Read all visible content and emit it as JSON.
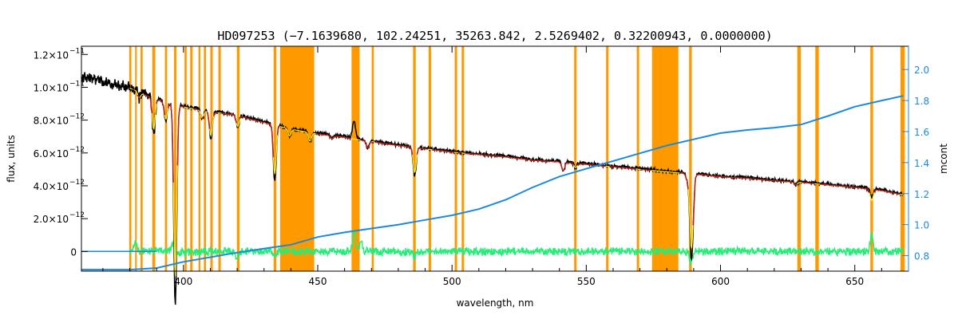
{
  "chart_data": {
    "type": "line",
    "title": "HD097253   (−7.1639680, 102.24251, 35263.842, 2.5269402, 0.32200943, 0.0000000)",
    "xlabel": "wavelength, nm",
    "ylabel": "flux, units",
    "y2label": "mcont",
    "xlim": [
      362,
      670
    ],
    "ylim": [
      -1.2e-12,
      1.25e-11
    ],
    "y2lim": [
      0.7,
      2.15
    ],
    "grid": false,
    "x_ticks": [
      {
        "value": 400,
        "label": "400"
      },
      {
        "value": 450,
        "label": "450"
      },
      {
        "value": 500,
        "label": "500"
      },
      {
        "value": 550,
        "label": "550"
      },
      {
        "value": 600,
        "label": "600"
      },
      {
        "value": 650,
        "label": "650"
      }
    ],
    "y_ticks": [
      {
        "value": 0,
        "mant": "0",
        "exp": ""
      },
      {
        "value": 2e-12,
        "mant": "2.0×10",
        "exp": "−12"
      },
      {
        "value": 4e-12,
        "mant": "4.0×10",
        "exp": "−12"
      },
      {
        "value": 6e-12,
        "mant": "6.0×10",
        "exp": "−12"
      },
      {
        "value": 8e-12,
        "mant": "8.0×10",
        "exp": "−12"
      },
      {
        "value": 1e-11,
        "mant": "1.0×10",
        "exp": "−11"
      },
      {
        "value": 1.2e-11,
        "mant": "1.2×10",
        "exp": "−11"
      }
    ],
    "y2_ticks": [
      {
        "value": 0.8,
        "label": "0.8"
      },
      {
        "value": 1.0,
        "label": "1.0"
      },
      {
        "value": 1.2,
        "label": "1.2"
      },
      {
        "value": 1.4,
        "label": "1.4"
      },
      {
        "value": 1.6,
        "label": "1.6"
      },
      {
        "value": 1.8,
        "label": "1.8"
      },
      {
        "value": 2.0,
        "label": "2.0"
      }
    ],
    "masked_regions": [
      [
        379.8,
        380.6
      ],
      [
        382.0,
        382.6
      ],
      [
        384.0,
        384.8
      ],
      [
        388.4,
        389.5
      ],
      [
        393.1,
        393.9
      ],
      [
        396.5,
        397.4
      ],
      [
        400.4,
        401.2
      ],
      [
        402.5,
        403.4
      ],
      [
        405.6,
        406.3
      ],
      [
        407.6,
        408.4
      ],
      [
        410.0,
        410.9
      ],
      [
        413.0,
        413.9
      ],
      [
        419.9,
        420.9
      ],
      [
        433.6,
        434.6
      ],
      [
        436.0,
        448.7
      ],
      [
        462.6,
        465.6
      ],
      [
        470.1,
        470.9
      ],
      [
        485.5,
        486.5
      ],
      [
        491.3,
        492.2
      ],
      [
        501.0,
        501.9
      ],
      [
        503.6,
        504.5
      ],
      [
        545.5,
        546.4
      ],
      [
        557.4,
        558.3
      ],
      [
        568.8,
        569.7
      ],
      [
        574.5,
        584.3
      ],
      [
        588.3,
        589.3
      ],
      [
        628.6,
        629.9
      ],
      [
        635.3,
        636.6
      ],
      [
        655.8,
        656.8
      ],
      [
        667.0,
        668.6
      ]
    ],
    "colors": {
      "spectrum": "#000000",
      "model": "#e02010",
      "model_masked": "#ffee22",
      "continuum": "#1a8ae0",
      "residual": "#22ee77",
      "mask": "#ff9900",
      "y2_axis": "#1a8ae0"
    },
    "series": [
      {
        "role": "observed spectrum (left axis)",
        "x": [
          362,
          365,
          368,
          371,
          374,
          377,
          380,
          383,
          386,
          390,
          395,
          400,
          405,
          410,
          415,
          420,
          425,
          430,
          435,
          440,
          445,
          450,
          455,
          460,
          465,
          470,
          475,
          480,
          490,
          500,
          510,
          520,
          530,
          540,
          550,
          560,
          570,
          580,
          590,
          600,
          610,
          620,
          630,
          640,
          650,
          660,
          668
        ],
        "y": [
          1.06e-11,
          1.055e-11,
          1.045e-11,
          1.035e-11,
          1.02e-11,
          1.01e-11,
          1e-11,
          9.8e-12,
          9.55e-12,
          9.3e-12,
          9.05e-12,
          8.85e-12,
          8.7e-12,
          8.55e-12,
          8.45e-12,
          8.35e-12,
          8.1e-12,
          7.9e-12,
          7.7e-12,
          7.5e-12,
          7.35e-12,
          7.2e-12,
          7.1e-12,
          7e-12,
          6.85e-12,
          6.75e-12,
          6.6e-12,
          6.5e-12,
          6.3e-12,
          6.1e-12,
          5.95e-12,
          5.8e-12,
          5.6e-12,
          5.5e-12,
          5.35e-12,
          5.2e-12,
          5.05e-12,
          4.9e-12,
          4.75e-12,
          4.6e-12,
          4.5e-12,
          4.35e-12,
          4.25e-12,
          4.1e-12,
          3.95e-12,
          3.75e-12,
          3.5e-12
        ]
      },
      {
        "role": "model (left axis)",
        "x": [
          380,
          383,
          386,
          390,
          395,
          400,
          405,
          410,
          415,
          420,
          425,
          430,
          435,
          440,
          445,
          450,
          455,
          460,
          465,
          470,
          475,
          480,
          490,
          500,
          510,
          520,
          530,
          540,
          550,
          560,
          570,
          580,
          590,
          600,
          610,
          620,
          630,
          640,
          650,
          660,
          668
        ],
        "y": [
          9.95e-12,
          9.75e-12,
          9.5e-12,
          9.25e-12,
          9e-12,
          8.8e-12,
          8.65e-12,
          8.5e-12,
          8.4e-12,
          8.3e-12,
          8.05e-12,
          7.85e-12,
          7.65e-12,
          7.45e-12,
          7.3e-12,
          7.15e-12,
          7.05e-12,
          6.95e-12,
          6.8e-12,
          6.7e-12,
          6.55e-12,
          6.45e-12,
          6.25e-12,
          6.05e-12,
          5.9e-12,
          5.75e-12,
          5.55e-12,
          5.45e-12,
          5.3e-12,
          5.15e-12,
          5e-12,
          4.85e-12,
          4.7e-12,
          4.55e-12,
          4.45e-12,
          4.3e-12,
          4.2e-12,
          4.05e-12,
          3.9e-12,
          3.7e-12,
          3.45e-12
        ]
      },
      {
        "role": "continuum ratio mcont (right axis)",
        "x": [
          362,
          380,
          390,
          400,
          410,
          420,
          430,
          440,
          450,
          460,
          470,
          480,
          490,
          500,
          510,
          520,
          530,
          540,
          550,
          560,
          570,
          580,
          590,
          600,
          610,
          620,
          630,
          640,
          650,
          660,
          668
        ],
        "y": [
          0.71,
          0.71,
          0.72,
          0.76,
          0.79,
          0.82,
          0.845,
          0.87,
          0.92,
          0.95,
          0.975,
          1.0,
          1.03,
          1.06,
          1.1,
          1.16,
          1.24,
          1.31,
          1.36,
          1.41,
          1.46,
          1.51,
          1.55,
          1.59,
          1.61,
          1.625,
          1.645,
          1.7,
          1.76,
          1.8,
          1.83
        ]
      },
      {
        "role": "residual (left axis)",
        "x": [
          380,
          390,
          400,
          410,
          420,
          430,
          440,
          450,
          460,
          470,
          480,
          490,
          500,
          510,
          520,
          530,
          540,
          550,
          560,
          570,
          580,
          590,
          600,
          610,
          620,
          630,
          640,
          650,
          660,
          668
        ],
        "y": [
          0,
          5e-14,
          -5e-14,
          0,
          -2e-14,
          3e-14,
          0,
          -3e-14,
          2e-14,
          0,
          -2e-14,
          0,
          2e-14,
          -2e-14,
          0,
          1e-14,
          -1e-14,
          0,
          2e-14,
          -1e-14,
          0,
          -2e-14,
          1e-14,
          0,
          -1e-14,
          2e-14,
          0,
          -2e-14,
          1e-14,
          0
        ]
      }
    ],
    "absorption_lines": [
      {
        "x": 383.5,
        "depth": 4e-13
      },
      {
        "x": 388.9,
        "depth": 2.2e-12
      },
      {
        "x": 393.4,
        "depth": 1.2e-12
      },
      {
        "x": 396.9,
        "depth": 6.7e-12
      },
      {
        "x": 397.0,
        "depth": 5.7e-12
      },
      {
        "x": 407.0,
        "depth": 6e-13
      },
      {
        "x": 410.2,
        "depth": 1.7e-12
      },
      {
        "x": 420.2,
        "depth": 8e-13
      },
      {
        "x": 434.0,
        "depth": 3.5e-12
      },
      {
        "x": 439.5,
        "depth": 5e-13
      },
      {
        "x": 447.1,
        "depth": 6e-13
      },
      {
        "x": 455.3,
        "depth": 2e-13
      },
      {
        "x": 468.6,
        "depth": 5e-13
      },
      {
        "x": 486.1,
        "depth": 1.8e-12
      },
      {
        "x": 541.4,
        "depth": 6e-13
      },
      {
        "x": 546.0,
        "depth": 3e-13
      },
      {
        "x": 587.6,
        "depth": 4e-13
      },
      {
        "x": 589.0,
        "depth": 3.9e-12
      },
      {
        "x": 589.6,
        "depth": 2.2e-12
      },
      {
        "x": 628.0,
        "depth": 2e-13
      },
      {
        "x": 656.3,
        "depth": 8e-13
      }
    ],
    "emission_features": [
      {
        "x": 463.5,
        "height": 1.1e-12
      },
      {
        "x": 656.3,
        "height": 3e-13
      }
    ],
    "residual_spikes": [
      {
        "x": 463.5,
        "height": 1.2e-12
      },
      {
        "x": 466.0,
        "height": 6e-13
      },
      {
        "x": 382.0,
        "height": 6e-13
      },
      {
        "x": 396.0,
        "height": 5e-13
      },
      {
        "x": 656.3,
        "height": 1e-12
      },
      {
        "x": 420.0,
        "height": -4e-13
      },
      {
        "x": 434.0,
        "height": -3e-13
      },
      {
        "x": 486.0,
        "height": -3e-13
      },
      {
        "x": 589.0,
        "height": -6e-13
      }
    ]
  }
}
